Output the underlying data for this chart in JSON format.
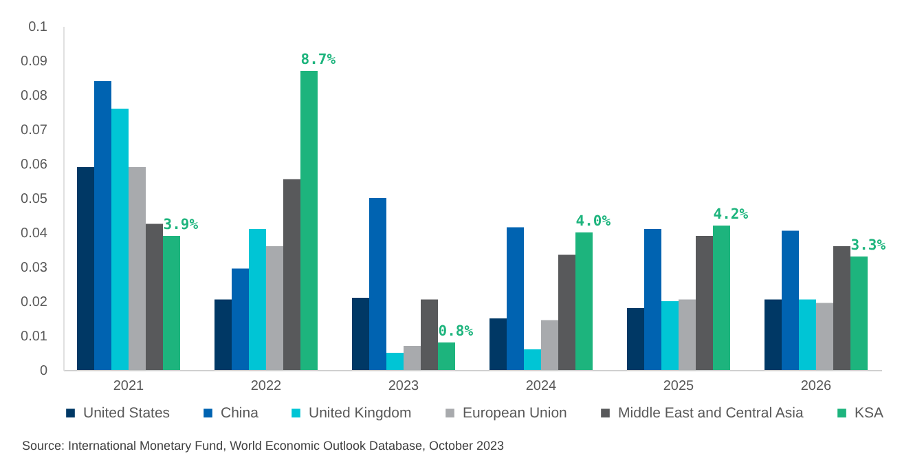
{
  "chart_data": {
    "type": "bar",
    "categories": [
      "2021",
      "2022",
      "2023",
      "2024",
      "2025",
      "2026"
    ],
    "series": [
      {
        "name": "United States",
        "color": "#003865",
        "values": [
          0.059,
          0.0205,
          0.021,
          0.015,
          0.018,
          0.0205
        ]
      },
      {
        "name": "China",
        "color": "#0063b1",
        "values": [
          0.084,
          0.0295,
          0.05,
          0.0415,
          0.041,
          0.0405
        ]
      },
      {
        "name": "United Kingdom",
        "color": "#00c5d5",
        "values": [
          0.076,
          0.041,
          0.005,
          0.006,
          0.02,
          0.0205
        ]
      },
      {
        "name": "European Union",
        "color": "#a8aaad",
        "values": [
          0.059,
          0.036,
          0.007,
          0.0145,
          0.0205,
          0.0195
        ]
      },
      {
        "name": "Middle East and Central Asia",
        "color": "#58595b",
        "values": [
          0.0425,
          0.0555,
          0.0205,
          0.0335,
          0.039,
          0.036
        ]
      },
      {
        "name": "KSA",
        "color": "#1db47d",
        "values": [
          0.039,
          0.087,
          0.008,
          0.04,
          0.042,
          0.033
        ],
        "value_labels": [
          "3.9%",
          "8.7%",
          "0.8%",
          "4.0%",
          "4.2%",
          "3.3%"
        ]
      }
    ],
    "ylim": [
      0,
      0.1
    ],
    "yticks": [
      0,
      0.01,
      0.02,
      0.03,
      0.04,
      0.05,
      0.06,
      0.07,
      0.08,
      0.09,
      0.1
    ],
    "legend": "bottom",
    "annotations": [
      "Source: International Monetary Fund, World Economic Outlook Database, October 2023"
    ]
  }
}
